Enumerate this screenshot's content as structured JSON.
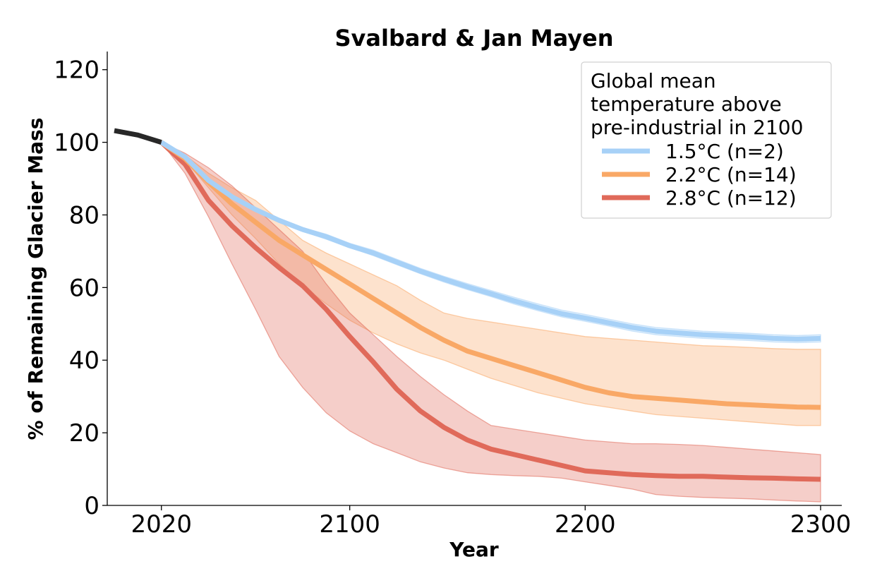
{
  "chart_data": {
    "type": "line",
    "title": "Svalbard & Jan Mayen",
    "xlabel": "Year",
    "ylabel": "% of Remaining Glacier Mass",
    "xlim": [
      1997,
      2309
    ],
    "ylim": [
      0,
      125
    ],
    "xticks": [
      2020,
      2100,
      2200,
      2300
    ],
    "yticks": [
      0,
      20,
      40,
      60,
      80,
      100,
      120
    ],
    "grid": false,
    "legend": {
      "placement": "top-right",
      "title_lines": [
        "Global mean",
        "temperature above",
        "pre-industrial in 2100"
      ]
    },
    "historical": {
      "color": "#111111",
      "x": [
        2000,
        2010,
        2020
      ],
      "y": [
        103.2,
        102.0,
        100.0
      ]
    },
    "series": [
      {
        "name": "1.5°C (n=2)",
        "color": "#a7d1f7",
        "x": [
          2020,
          2030,
          2040,
          2050,
          2060,
          2070,
          2080,
          2090,
          2100,
          2110,
          2120,
          2130,
          2140,
          2150,
          2160,
          2170,
          2180,
          2190,
          2200,
          2210,
          2220,
          2230,
          2240,
          2250,
          2260,
          2270,
          2280,
          2290,
          2300
        ],
        "y": [
          100.0,
          96.0,
          89.5,
          85.0,
          81.5,
          78.5,
          76.0,
          74.0,
          71.5,
          69.5,
          67.0,
          64.5,
          62.3,
          60.2,
          58.3,
          56.3,
          54.5,
          52.8,
          51.6,
          50.3,
          49.0,
          48.0,
          47.5,
          47.0,
          46.7,
          46.4,
          46.0,
          45.8,
          46.0
        ],
        "band_low": [
          100.0,
          95.5,
          89.0,
          84.5,
          81.0,
          78.0,
          75.5,
          73.3,
          71.0,
          68.8,
          66.3,
          63.8,
          61.5,
          59.4,
          57.5,
          55.4,
          53.6,
          51.9,
          50.7,
          49.4,
          48.0,
          47.0,
          46.5,
          46.0,
          45.7,
          45.4,
          45.0,
          44.8,
          45.0
        ],
        "band_high": [
          100.0,
          96.5,
          90.0,
          85.5,
          82.0,
          79.0,
          76.5,
          74.7,
          72.2,
          70.3,
          67.8,
          65.3,
          63.1,
          61.1,
          59.2,
          57.3,
          55.5,
          53.8,
          52.6,
          51.3,
          50.0,
          49.0,
          48.5,
          48.0,
          47.7,
          47.4,
          47.0,
          46.8,
          47.0
        ]
      },
      {
        "name": "2.2°C (n=14)",
        "color": "#f9a866",
        "x": [
          2020,
          2030,
          2040,
          2050,
          2060,
          2070,
          2080,
          2090,
          2100,
          2110,
          2120,
          2130,
          2140,
          2150,
          2160,
          2170,
          2180,
          2190,
          2200,
          2210,
          2220,
          2230,
          2240,
          2250,
          2260,
          2270,
          2280,
          2290,
          2300
        ],
        "y": [
          100.0,
          95.5,
          89.0,
          83.0,
          78.0,
          73.0,
          69.0,
          65.0,
          61.0,
          57.0,
          53.0,
          49.0,
          45.5,
          42.5,
          40.5,
          38.5,
          36.5,
          34.5,
          32.5,
          31.0,
          30.0,
          29.5,
          29.0,
          28.5,
          28.0,
          27.7,
          27.4,
          27.1,
          27.0
        ],
        "band_low": [
          100.0,
          95.0,
          87.5,
          80.0,
          73.5,
          66.5,
          60.5,
          55.5,
          51.0,
          47.5,
          44.5,
          42.0,
          40.0,
          37.5,
          35.0,
          33.0,
          31.0,
          29.5,
          28.0,
          27.0,
          26.0,
          25.0,
          24.5,
          24.0,
          23.5,
          23.0,
          22.5,
          22.0,
          22.0
        ],
        "band_high": [
          100.0,
          96.5,
          91.5,
          87.5,
          84.0,
          78.5,
          73.0,
          69.5,
          66.5,
          63.5,
          60.5,
          56.5,
          53.0,
          51.5,
          50.5,
          49.5,
          48.5,
          47.5,
          46.5,
          46.0,
          45.5,
          45.0,
          44.5,
          44.0,
          43.8,
          43.5,
          43.2,
          43.0,
          43.0
        ]
      },
      {
        "name": "2.8°C (n=12)",
        "color": "#e06a5a",
        "x": [
          2020,
          2030,
          2040,
          2050,
          2060,
          2070,
          2080,
          2090,
          2100,
          2110,
          2120,
          2130,
          2140,
          2150,
          2160,
          2170,
          2180,
          2190,
          2200,
          2210,
          2220,
          2230,
          2240,
          2250,
          2260,
          2270,
          2280,
          2290,
          2300
        ],
        "y": [
          100.0,
          94.0,
          84.0,
          77.0,
          71.0,
          65.5,
          60.5,
          54.0,
          46.5,
          39.5,
          32.0,
          26.0,
          21.5,
          18.0,
          15.5,
          14.0,
          12.5,
          11.0,
          9.5,
          9.0,
          8.5,
          8.2,
          8.0,
          8.0,
          7.8,
          7.6,
          7.5,
          7.3,
          7.2
        ],
        "band_low": [
          100.0,
          91.5,
          79.5,
          66.5,
          54.0,
          41.0,
          32.5,
          25.5,
          20.5,
          17.0,
          14.5,
          12.0,
          10.3,
          9.0,
          8.5,
          8.2,
          8.0,
          7.5,
          6.5,
          5.5,
          4.5,
          3.0,
          2.5,
          2.2,
          2.0,
          1.8,
          1.5,
          1.2,
          1.0
        ],
        "band_high": [
          100.0,
          97.0,
          93.0,
          88.0,
          82.0,
          76.0,
          70.0,
          61.0,
          53.0,
          47.0,
          41.0,
          35.5,
          30.5,
          26.0,
          22.0,
          21.0,
          20.0,
          19.0,
          18.0,
          17.5,
          17.0,
          17.0,
          16.8,
          16.5,
          16.0,
          15.5,
          15.0,
          14.5,
          14.0
        ]
      }
    ]
  }
}
